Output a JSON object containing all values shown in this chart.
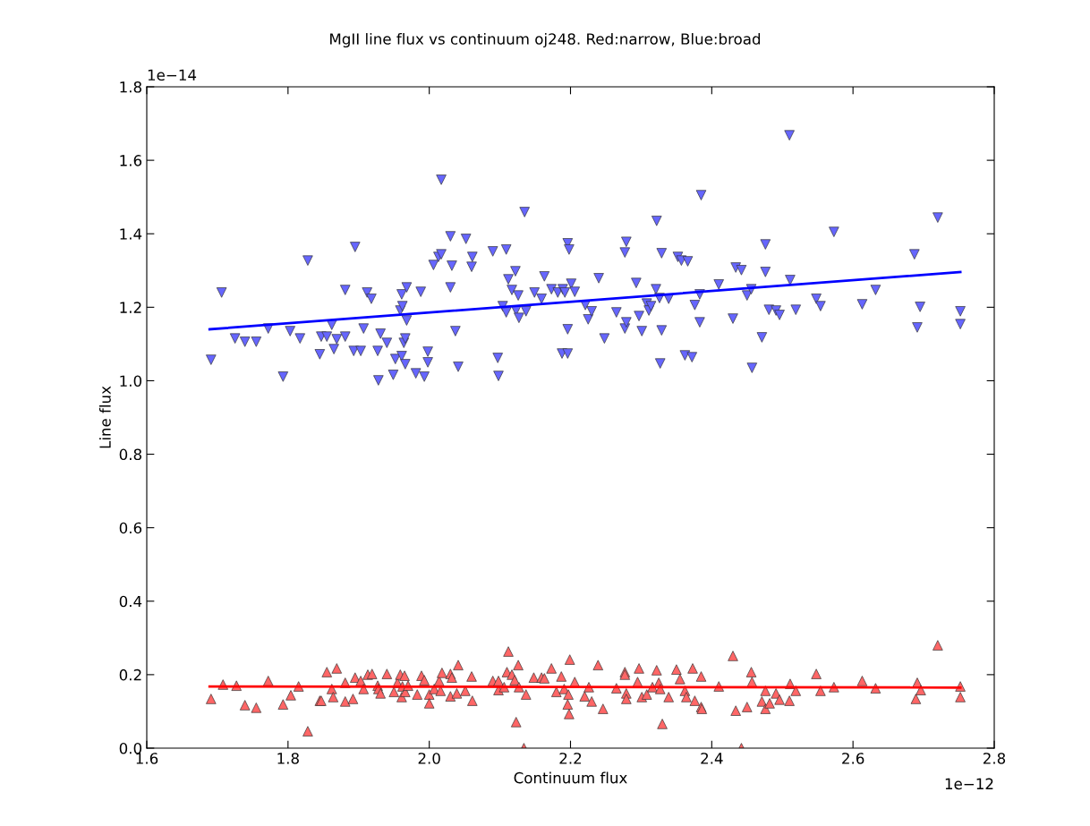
{
  "chart_data": {
    "type": "scatter",
    "title": "MgII line flux vs continuum oj248. Red:narrow, Blue:broad",
    "xlabel": "Continuum flux",
    "ylabel": "Line flux",
    "annotations": [
      "1e−14",
      "1e−12"
    ],
    "xlim": [
      1.6,
      2.8
    ],
    "xticks": [
      1.6,
      1.8,
      {
        "value": 2,
        "label": "2.0"
      },
      2.2,
      2.4,
      2.6,
      2.8
    ],
    "ylim": [
      0,
      1.8
    ],
    "yticks": [
      {
        "value": 0,
        "label": "0.0"
      },
      0.2,
      0.4,
      0.6,
      0.8,
      {
        "value": 1,
        "label": "1.0"
      },
      1.2,
      1.4,
      1.6,
      1.8
    ],
    "grid": false,
    "legend": false,
    "series": [
      {
        "marker": "triangle_down",
        "color": "#6666ff",
        "x": [
          1.691,
          1.706,
          1.725,
          1.739,
          1.755,
          1.772,
          1.793,
          1.803,
          1.817,
          1.828,
          1.845,
          1.847,
          1.855,
          1.862,
          1.865,
          1.869,
          1.881,
          1.881,
          1.893,
          1.895,
          1.903,
          1.907,
          1.912,
          1.918,
          1.927,
          1.928,
          1.931,
          1.94,
          1.949,
          1.952,
          1.959,
          1.961,
          1.961,
          1.962,
          1.964,
          1.966,
          1.966,
          1.968,
          1.968,
          1.981,
          1.988,
          1.993,
          1.998,
          1.998,
          2.006,
          2.013,
          2.017,
          2.017,
          2.03,
          2.032,
          2.03,
          2.037,
          2.041,
          2.052,
          2.06,
          2.061,
          2.09,
          2.097,
          2.098,
          2.104,
          2.109,
          2.109,
          2.112,
          2.117,
          2.122,
          2.123,
          2.126,
          2.127,
          2.135,
          2.137,
          2.149,
          2.159,
          2.163,
          2.173,
          2.182,
          2.188,
          2.189,
          2.192,
          2.196,
          2.198,
          2.196,
          2.196,
          2.201,
          2.206,
          2.221,
          2.225,
          2.23,
          2.24,
          2.248,
          2.265,
          2.277,
          2.277,
          2.279,
          2.279,
          2.293,
          2.297,
          2.301,
          2.308,
          2.311,
          2.314,
          2.321,
          2.322,
          2.326,
          2.327,
          2.329,
          2.329,
          2.339,
          2.352,
          2.357,
          2.362,
          2.366,
          2.372,
          2.376,
          2.383,
          2.383,
          2.385,
          2.41,
          2.43,
          2.434,
          2.442,
          2.45,
          2.456,
          2.457,
          2.471,
          2.476,
          2.476,
          2.481,
          2.491,
          2.496,
          2.51,
          2.511,
          2.519,
          2.548,
          2.554,
          2.573,
          2.613,
          2.632,
          2.687,
          2.691,
          2.695,
          2.72,
          2.752,
          2.752
        ],
        "values": [
          1.057,
          1.24,
          1.115,
          1.106,
          1.106,
          1.142,
          1.011,
          1.135,
          1.115,
          1.327,
          1.072,
          1.12,
          1.12,
          1.152,
          1.086,
          1.113,
          1.247,
          1.12,
          1.081,
          1.364,
          1.081,
          1.142,
          1.24,
          1.223,
          1.081,
          1.001,
          1.128,
          1.103,
          1.016,
          1.059,
          1.191,
          1.235,
          1.067,
          1.203,
          1.103,
          1.115,
          1.045,
          1.254,
          1.164,
          1.02,
          1.242,
          1.011,
          1.079,
          1.05,
          1.315,
          1.337,
          1.344,
          1.547,
          1.393,
          1.313,
          1.254,
          1.135,
          1.038,
          1.386,
          1.31,
          1.337,
          1.352,
          1.062,
          1.013,
          1.203,
          1.357,
          1.186,
          1.276,
          1.247,
          1.298,
          1.191,
          1.232,
          1.171,
          1.459,
          1.189,
          1.24,
          1.223,
          1.284,
          1.249,
          1.24,
          1.074,
          1.249,
          1.24,
          1.374,
          1.357,
          1.14,
          1.074,
          1.264,
          1.242,
          1.206,
          1.167,
          1.189,
          1.279,
          1.115,
          1.186,
          1.349,
          1.142,
          1.378,
          1.159,
          1.266,
          1.176,
          1.135,
          1.21,
          1.191,
          1.203,
          1.249,
          1.435,
          1.225,
          1.047,
          1.347,
          1.137,
          1.223,
          1.337,
          1.327,
          1.069,
          1.325,
          1.064,
          1.206,
          1.235,
          1.159,
          1.505,
          1.262,
          1.169,
          1.308,
          1.301,
          1.232,
          1.249,
          1.035,
          1.118,
          1.371,
          1.296,
          1.193,
          1.191,
          1.179,
          1.668,
          1.274,
          1.193,
          1.223,
          1.203,
          1.405,
          1.208,
          1.247,
          1.344,
          1.145,
          1.201,
          1.444,
          1.189,
          1.154
        ]
      },
      {
        "marker": "triangle",
        "color": "#ff6666",
        "x": [
          1.691,
          1.708,
          1.727,
          1.739,
          1.755,
          1.772,
          1.793,
          1.804,
          1.815,
          1.828,
          1.845,
          1.847,
          1.855,
          1.862,
          1.864,
          1.869,
          1.881,
          1.881,
          1.892,
          1.895,
          1.903,
          1.907,
          1.913,
          1.919,
          1.927,
          1.928,
          1.931,
          1.94,
          1.95,
          1.955,
          1.959,
          1.962,
          1.961,
          1.965,
          1.966,
          1.97,
          1.983,
          1.989,
          1.993,
          2.0,
          2.0,
          2.007,
          2.014,
          2.016,
          2.018,
          2.03,
          2.032,
          2.03,
          2.039,
          2.041,
          2.051,
          2.06,
          2.061,
          2.09,
          2.098,
          2.098,
          2.106,
          2.11,
          2.112,
          2.117,
          2.121,
          2.123,
          2.126,
          2.127,
          2.134,
          2.137,
          2.148,
          2.159,
          2.163,
          2.173,
          2.18,
          2.187,
          2.191,
          2.196,
          2.198,
          2.199,
          2.197,
          2.206,
          2.22,
          2.226,
          2.23,
          2.239,
          2.246,
          2.265,
          2.277,
          2.277,
          2.279,
          2.279,
          2.295,
          2.297,
          2.301,
          2.308,
          2.316,
          2.322,
          2.325,
          2.327,
          2.33,
          2.339,
          2.35,
          2.355,
          2.362,
          2.364,
          2.373,
          2.376,
          2.385,
          2.385,
          2.386,
          2.41,
          2.43,
          2.434,
          2.442,
          2.45,
          2.456,
          2.457,
          2.471,
          2.476,
          2.476,
          2.482,
          2.491,
          2.496,
          2.51,
          2.511,
          2.519,
          2.548,
          2.554,
          2.573,
          2.613,
          2.632,
          2.689,
          2.691,
          2.696,
          2.72,
          2.752,
          2.752
        ],
        "values": [
          0.134,
          0.173,
          0.17,
          0.117,
          0.11,
          0.183,
          0.119,
          0.144,
          0.168,
          0.046,
          0.129,
          0.129,
          0.207,
          0.161,
          0.139,
          0.217,
          0.127,
          0.178,
          0.134,
          0.192,
          0.183,
          0.161,
          0.2,
          0.202,
          0.17,
          0.161,
          0.149,
          0.202,
          0.153,
          0.178,
          0.2,
          0.168,
          0.139,
          0.197,
          0.153,
          0.17,
          0.146,
          0.197,
          0.185,
          0.146,
          0.122,
          0.161,
          0.183,
          0.156,
          0.205,
          0.202,
          0.192,
          0.141,
          0.149,
          0.226,
          0.156,
          0.195,
          0.129,
          0.183,
          0.158,
          0.183,
          0.166,
          0.207,
          0.263,
          0.2,
          0.185,
          0.071,
          0.226,
          0.166,
          0.0,
          0.146,
          0.192,
          0.192,
          0.19,
          0.217,
          0.153,
          0.195,
          0.161,
          0.119,
          0.093,
          0.241,
          0.146,
          0.18,
          0.141,
          0.166,
          0.127,
          0.226,
          0.107,
          0.163,
          0.207,
          0.2,
          0.149,
          0.134,
          0.18,
          0.217,
          0.139,
          0.146,
          0.166,
          0.212,
          0.178,
          0.161,
          0.066,
          0.139,
          0.214,
          0.188,
          0.156,
          0.139,
          0.217,
          0.129,
          0.195,
          0.112,
          0.107,
          0.168,
          0.251,
          0.102,
          0.0,
          0.112,
          0.207,
          0.18,
          0.127,
          0.156,
          0.107,
          0.122,
          0.149,
          0.132,
          0.129,
          0.175,
          0.156,
          0.202,
          0.156,
          0.166,
          0.183,
          0.163,
          0.134,
          0.178,
          0.158,
          0.28,
          0.168,
          0.139
        ]
      },
      {
        "type": "line",
        "color": "#0000ff",
        "x": [
          1.689,
          2.752
        ],
        "values": [
          1.14,
          1.296
        ]
      },
      {
        "type": "line",
        "color": "#ff0000",
        "x": [
          1.689,
          2.752
        ],
        "values": [
          0.168,
          0.165
        ]
      }
    ]
  }
}
